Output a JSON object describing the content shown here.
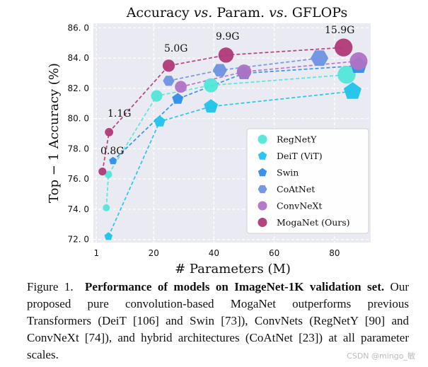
{
  "chart_data": {
    "type": "scatter",
    "title_parts": [
      "Accuracy ",
      "vs.",
      " Param. ",
      "vs.",
      " GFLOPs"
    ],
    "xlabel": "# Parameters (M)",
    "ylabel": "Top − 1 Accuracy (%)",
    "xlim": [
      0,
      92
    ],
    "ylim": [
      71.8,
      86.3
    ],
    "x_ticks": [
      1,
      20,
      40,
      60,
      80
    ],
    "y_ticks": [
      72.0,
      74.0,
      76.0,
      78.0,
      80.0,
      82.0,
      84.0,
      86.0
    ],
    "y_tick_labels": [
      "72. 0",
      "74. 0",
      "76. 0",
      "78. 0",
      "80. 0",
      "82. 0",
      "84. 0",
      "86. 0"
    ],
    "grid": true,
    "legend_position": "lower-right",
    "series": [
      {
        "name": "RegNetY",
        "color": "#52e6d8",
        "marker": "circle",
        "x": [
          4.3,
          5.0,
          21.0,
          39.0,
          84.0
        ],
        "y": [
          74.1,
          76.3,
          81.5,
          82.2,
          82.9
        ],
        "gflops": [
          0.4,
          0.6,
          4.0,
          8.0,
          16.0
        ]
      },
      {
        "name": "DeiT (ViT)",
        "color": "#1fc3ea",
        "marker": "pentagon",
        "x": [
          5.0,
          22.0,
          39.0,
          86.0
        ],
        "y": [
          72.2,
          79.8,
          80.8,
          81.8
        ],
        "gflops": [
          1.3,
          4.6,
          9.0,
          17.6
        ]
      },
      {
        "name": "Swin",
        "color": "#2e8ee8",
        "marker": "pentagon",
        "x": [
          6.5,
          28.0,
          50.0,
          88.0
        ],
        "y": [
          77.2,
          81.3,
          83.0,
          83.5
        ],
        "gflops": [
          1.0,
          4.5,
          8.7,
          15.4
        ]
      },
      {
        "name": "CoAtNet",
        "color": "#6e92e2",
        "marker": "hexagon",
        "x": [
          25.0,
          42.0,
          75.0
        ],
        "y": [
          82.5,
          83.2,
          84.0
        ],
        "gflops": [
          4.2,
          8.4,
          15.7
        ]
      },
      {
        "name": "ConvNeXt",
        "color": "#b072c4",
        "marker": "circle",
        "x": [
          29.0,
          50.0,
          88.0
        ],
        "y": [
          82.1,
          83.1,
          83.8
        ],
        "gflops": [
          4.5,
          8.7,
          15.4
        ]
      },
      {
        "name": "MogaNet (Ours)",
        "color": "#b03a78",
        "marker": "circle",
        "x": [
          3.0,
          5.2,
          25.0,
          44.0,
          83.0
        ],
        "y": [
          76.5,
          79.1,
          83.5,
          84.2,
          84.7
        ],
        "gflops": [
          0.8,
          1.1,
          5.0,
          9.9,
          15.9
        ]
      }
    ],
    "annotations": [
      "0.8G",
      "1.1G",
      "5.0G",
      "9.9G",
      "15.9G"
    ]
  },
  "caption": {
    "label": "Figure 1.",
    "title": "Performance of models on ImageNet-1K validation set.",
    "body": " Our proposed pure convolution-based MogaNet outperforms previous Transformers (DeiT [106] and Swin [73]), ConvNets (RegNetY [90] and ConvNeXt [74]), and hybrid architectures (CoAtNet [23]) at all parameter scales."
  },
  "watermark": "CSDN @mingo_敏"
}
